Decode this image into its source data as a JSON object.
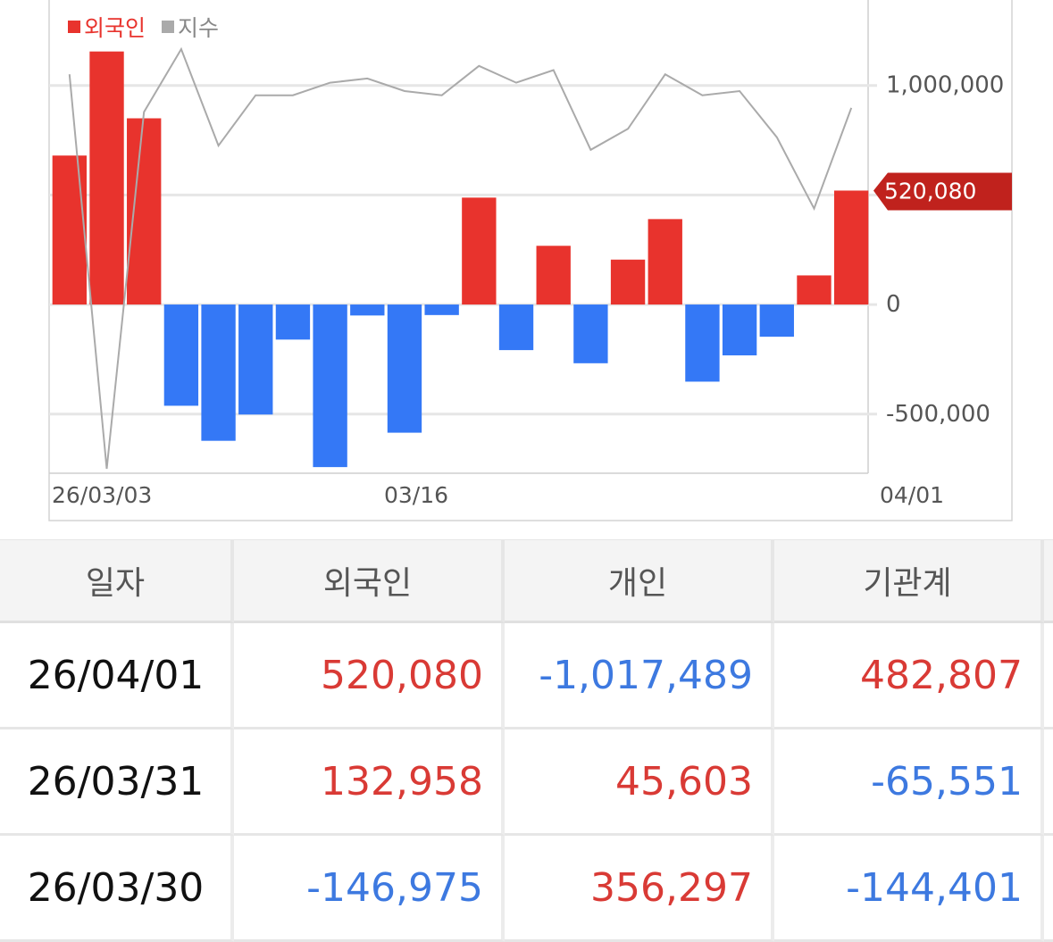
{
  "legend": {
    "foreign": "외국인",
    "index": "지수"
  },
  "colors": {
    "positive": "#e8332d",
    "negative": "#3478f6",
    "index_line": "#aaaaaa",
    "callout": "#c0221d"
  },
  "chart_data": {
    "type": "bar",
    "categories": [
      "26/03/03",
      "26/03/04",
      "26/03/05",
      "26/03/06",
      "26/03/09",
      "26/03/10",
      "26/03/11",
      "26/03/12",
      "26/03/13",
      "26/03/16",
      "26/03/17",
      "26/03/18",
      "26/03/19",
      "26/03/20",
      "26/03/23",
      "26/03/24",
      "26/03/25",
      "26/03/26",
      "26/03/27",
      "26/03/30",
      "26/03/31",
      "26/04/01"
    ],
    "series": [
      {
        "name": "외국인",
        "type": "bar",
        "axis": "right",
        "values": [
          680000,
          1155000,
          850000,
          -462000,
          -622000,
          -502000,
          -160000,
          -742000,
          -50000,
          -585000,
          -48000,
          488000,
          -208000,
          268000,
          -268000,
          205000,
          390000,
          -352000,
          -232000,
          -146975,
          132958,
          520080
        ]
      },
      {
        "name": "지수",
        "type": "line",
        "values": [
          0.94,
          0.0,
          0.85,
          1.0,
          0.77,
          0.89,
          0.89,
          0.92,
          0.93,
          0.9,
          0.89,
          0.96,
          0.92,
          0.95,
          0.76,
          0.81,
          0.94,
          0.89,
          0.9,
          0.79,
          0.62,
          0.86
        ]
      }
    ],
    "xlabels": [
      "26/03/03",
      "03/16",
      "04/01"
    ],
    "yticks": [
      "1,000,000",
      "500,000",
      "0",
      "-500,000"
    ],
    "ylim": [
      -770000,
      1390000
    ],
    "callout": "520,080",
    "grid": true,
    "legend_position": "top-left"
  },
  "table": {
    "headers": [
      "일자",
      "외국인",
      "개인",
      "기관계"
    ],
    "rows": [
      {
        "date": "26/04/01",
        "foreign": "520,080",
        "individual": "-1,017,489",
        "institution": "482,807"
      },
      {
        "date": "26/03/31",
        "foreign": "132,958",
        "individual": "45,603",
        "institution": "-65,551"
      },
      {
        "date": "26/03/30",
        "foreign": "-146,975",
        "individual": "356,297",
        "institution": "-144,401"
      }
    ]
  }
}
